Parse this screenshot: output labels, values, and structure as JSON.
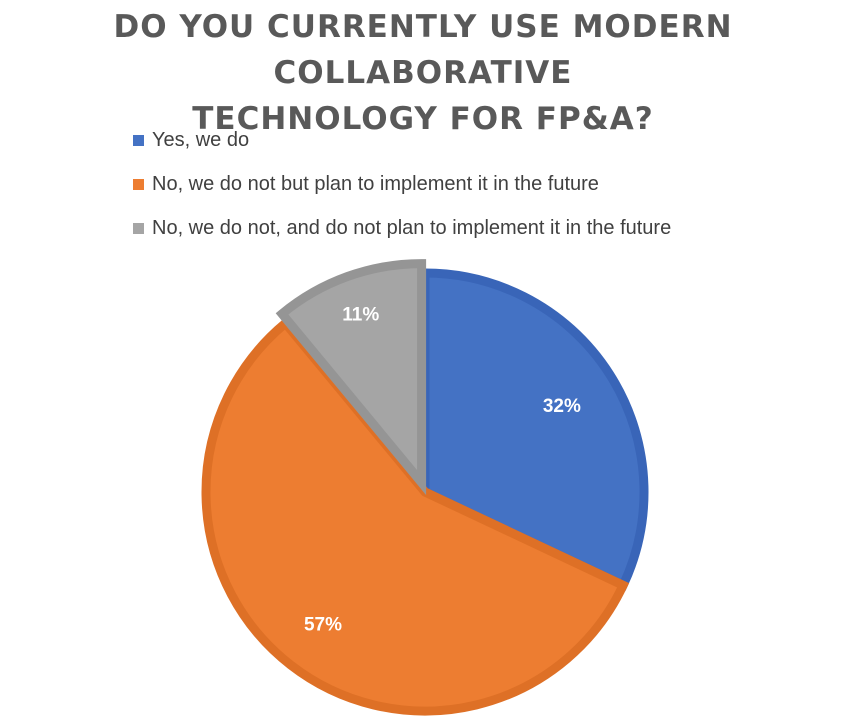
{
  "chart_data": {
    "type": "pie",
    "title": "DO YOU CURRENTLY USE MODERN COLLABORATIVE TECHNOLOGY FOR FP&A?",
    "title_lines": [
      "DO YOU CURRENTLY USE MODERN COLLABORATIVE",
      "TECHNOLOGY FOR FP&A?"
    ],
    "categories": [
      "Yes, we do",
      "No, we do not but plan to implement it in the future",
      "No, we do not, and do not plan to implement it in the future"
    ],
    "values": [
      32,
      57,
      11
    ],
    "labels": [
      "32%",
      "57%",
      "11%"
    ],
    "colors": [
      "#4472C4",
      "#ED7D31",
      "#A5A5A5"
    ],
    "edge_colors": [
      "#3965B8",
      "#DE7026",
      "#959595"
    ],
    "legend_position": "top"
  }
}
